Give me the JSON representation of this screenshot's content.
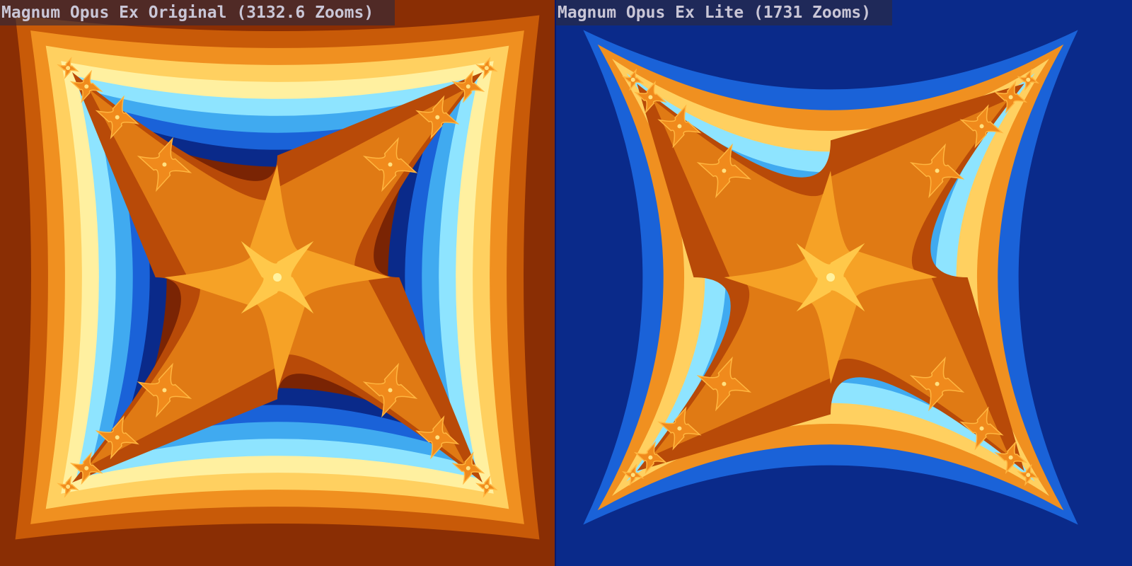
{
  "panels": [
    {
      "caption": "Magnum Opus Ex Original (3132.6 Zooms)"
    },
    {
      "caption": "Magnum Opus Ex Lite (1731 Zooms)"
    }
  ]
}
